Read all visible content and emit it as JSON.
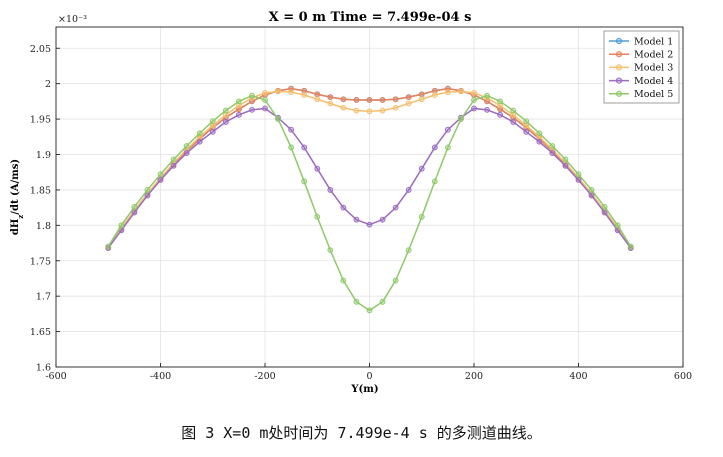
{
  "chart_data": {
    "type": "line",
    "title": "X = 0 m   Time = 7.499e-04 s",
    "xlabel": "Y(m)",
    "ylabel": "dH_z/dt (A/ms)",
    "ylabel_main": "dH",
    "ylabel_sub": "z",
    "ylabel_rest": "/dt (A/ms)",
    "y_multiplier": "×10⁻³",
    "xlim": [
      -600,
      600
    ],
    "ylim": [
      1.6,
      2.08
    ],
    "xticks": [
      "-600",
      "-400",
      "-200",
      "0",
      "200",
      "400",
      "600"
    ],
    "yticks": [
      "1.6",
      "1.65",
      "1.7",
      "1.75",
      "1.8",
      "1.85",
      "1.9",
      "1.95",
      "2",
      "2.05"
    ],
    "grid": true,
    "legend_position": "top-right",
    "x": [
      -500,
      -475,
      -450,
      -425,
      -400,
      -375,
      -350,
      -325,
      -300,
      -275,
      -250,
      -225,
      -200,
      -175,
      -150,
      -125,
      -100,
      -75,
      -50,
      -25,
      0,
      25,
      50,
      75,
      100,
      125,
      150,
      175,
      200,
      225,
      250,
      275,
      300,
      325,
      350,
      375,
      400,
      425,
      450,
      475,
      500
    ],
    "series": [
      {
        "name": "Model 1",
        "color": "#4f9fd6",
        "values": [
          1.768,
          1.795,
          1.82,
          1.844,
          1.866,
          1.886,
          1.905,
          1.922,
          1.938,
          1.952,
          1.964,
          1.975,
          1.984,
          1.99,
          1.993,
          1.99,
          1.985,
          1.981,
          1.978,
          1.977,
          1.977,
          1.977,
          1.978,
          1.981,
          1.985,
          1.99,
          1.993,
          1.99,
          1.984,
          1.975,
          1.964,
          1.952,
          1.938,
          1.922,
          1.905,
          1.886,
          1.866,
          1.844,
          1.82,
          1.795,
          1.768
        ]
      },
      {
        "name": "Model 2",
        "color": "#e8825a",
        "values": [
          1.768,
          1.795,
          1.82,
          1.844,
          1.866,
          1.886,
          1.905,
          1.922,
          1.938,
          1.952,
          1.964,
          1.975,
          1.984,
          1.99,
          1.993,
          1.99,
          1.985,
          1.981,
          1.978,
          1.977,
          1.977,
          1.977,
          1.978,
          1.981,
          1.985,
          1.99,
          1.993,
          1.99,
          1.984,
          1.975,
          1.964,
          1.952,
          1.938,
          1.922,
          1.905,
          1.886,
          1.866,
          1.844,
          1.82,
          1.795,
          1.768
        ]
      },
      {
        "name": "Model 3",
        "color": "#f4c070",
        "values": [
          1.768,
          1.796,
          1.821,
          1.845,
          1.867,
          1.888,
          1.907,
          1.925,
          1.941,
          1.956,
          1.969,
          1.98,
          1.987,
          1.989,
          1.988,
          1.984,
          1.978,
          1.972,
          1.966,
          1.962,
          1.961,
          1.962,
          1.966,
          1.972,
          1.978,
          1.984,
          1.988,
          1.989,
          1.987,
          1.98,
          1.969,
          1.956,
          1.941,
          1.925,
          1.907,
          1.888,
          1.867,
          1.845,
          1.821,
          1.796,
          1.768
        ]
      },
      {
        "name": "Model 4",
        "color": "#9b6cc2",
        "values": [
          1.768,
          1.793,
          1.818,
          1.842,
          1.864,
          1.884,
          1.902,
          1.918,
          1.932,
          1.946,
          1.956,
          1.963,
          1.965,
          1.952,
          1.935,
          1.91,
          1.88,
          1.85,
          1.825,
          1.808,
          1.801,
          1.808,
          1.825,
          1.85,
          1.88,
          1.91,
          1.935,
          1.952,
          1.965,
          1.963,
          1.956,
          1.946,
          1.932,
          1.918,
          1.902,
          1.884,
          1.864,
          1.842,
          1.818,
          1.793,
          1.768
        ]
      },
      {
        "name": "Model 5",
        "color": "#8fc96a",
        "values": [
          1.77,
          1.8,
          1.826,
          1.85,
          1.872,
          1.893,
          1.912,
          1.93,
          1.947,
          1.962,
          1.975,
          1.983,
          1.977,
          1.95,
          1.91,
          1.862,
          1.812,
          1.765,
          1.722,
          1.692,
          1.68,
          1.692,
          1.722,
          1.765,
          1.812,
          1.862,
          1.91,
          1.95,
          1.977,
          1.983,
          1.975,
          1.962,
          1.947,
          1.93,
          1.912,
          1.893,
          1.872,
          1.85,
          1.826,
          1.8,
          1.77
        ]
      }
    ]
  },
  "caption": "图 3 X=0 m处时间为 7.499e-4 s 的多测道曲线。"
}
